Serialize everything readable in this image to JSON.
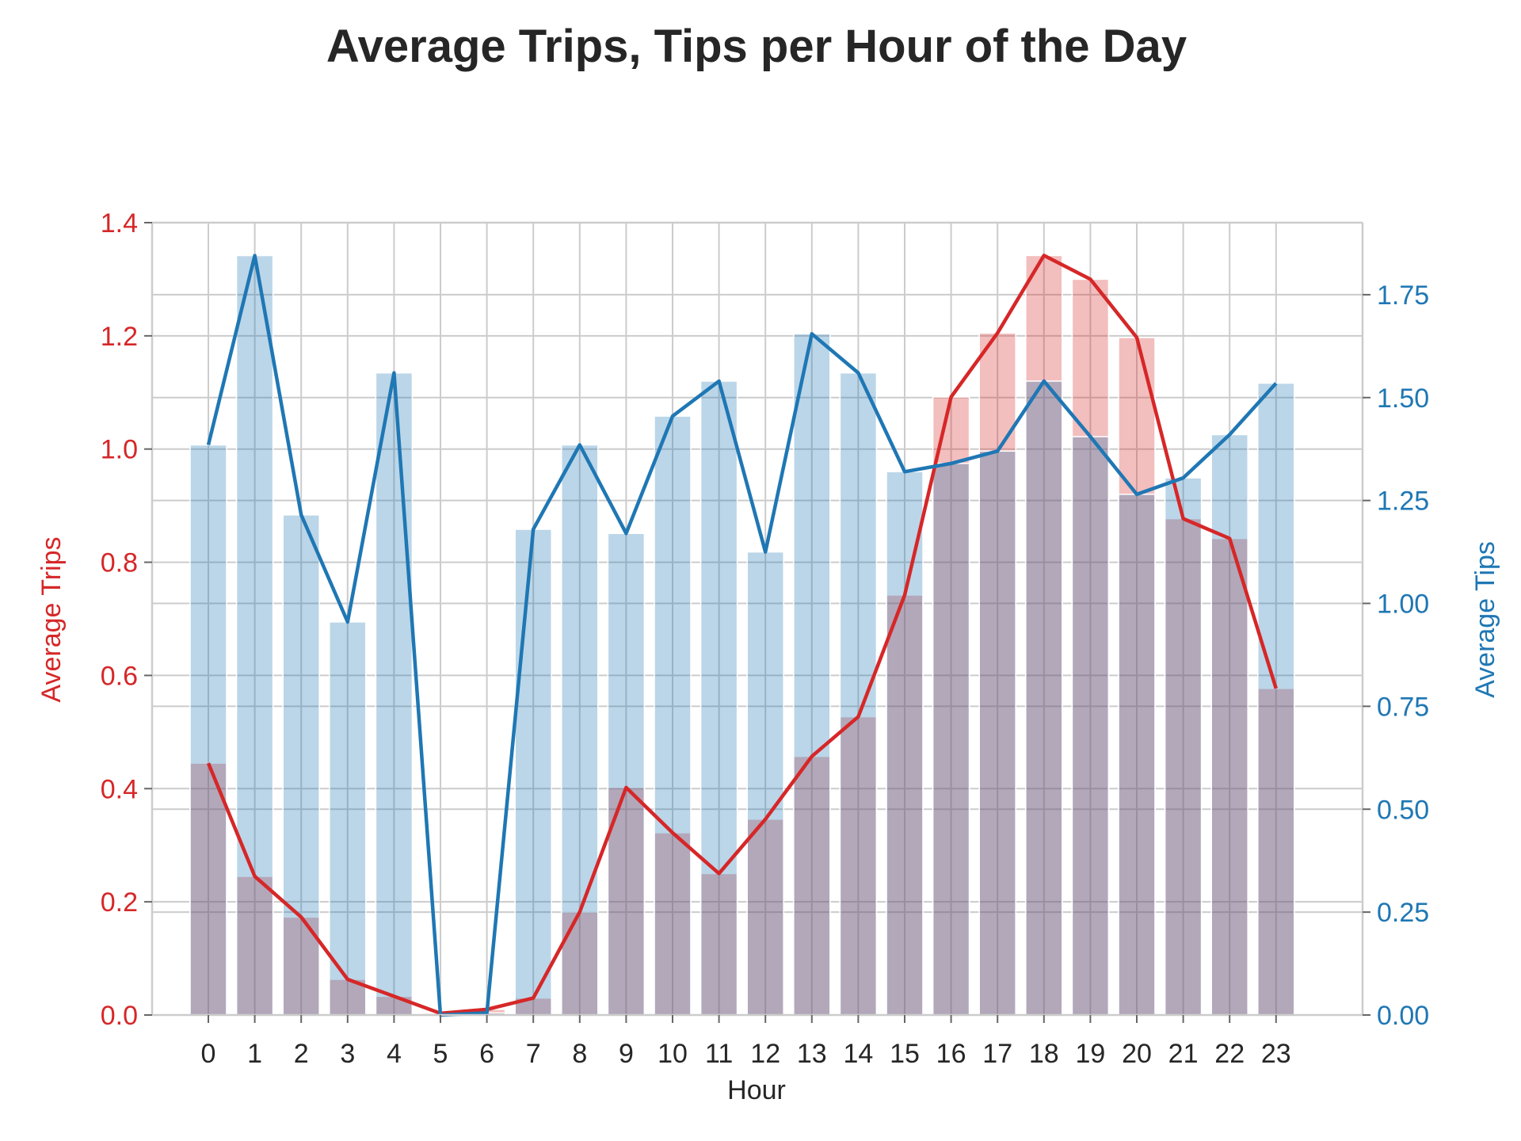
{
  "chart_data": {
    "type": "bar",
    "title": "Average Trips, Tips per Hour of the Day",
    "xlabel": "Hour",
    "categories": [
      "0",
      "1",
      "2",
      "3",
      "4",
      "5",
      "6",
      "7",
      "8",
      "9",
      "10",
      "11",
      "12",
      "13",
      "14",
      "15",
      "16",
      "17",
      "18",
      "19",
      "20",
      "21",
      "22",
      "23"
    ],
    "left_axis": {
      "label": "Average Trips",
      "color": "#d62728",
      "ylim": [
        0,
        1.4
      ],
      "ticks": [
        "0.0",
        "0.2",
        "0.4",
        "0.6",
        "0.8",
        "1.0",
        "1.2",
        "1.4"
      ]
    },
    "right_axis": {
      "label": "Average Tips",
      "color": "#1f77b4",
      "ylim": [
        0,
        1.925
      ],
      "ticks": [
        "0.00",
        "0.25",
        "0.50",
        "0.75",
        "1.00",
        "1.25",
        "1.50",
        "1.75"
      ]
    },
    "series": [
      {
        "axis": "left",
        "color": "#d62728",
        "render": "bar+line",
        "values": [
          0.445,
          0.245,
          0.173,
          0.063,
          0.033,
          0.003,
          0.01,
          0.03,
          0.182,
          0.402,
          0.322,
          0.25,
          0.346,
          0.457,
          0.527,
          0.742,
          1.092,
          1.205,
          1.342,
          1.3,
          1.197,
          0.877,
          0.842,
          0.577
        ]
      },
      {
        "axis": "right",
        "color": "#1f77b4",
        "render": "bar+line",
        "values": [
          1.385,
          1.845,
          1.215,
          0.955,
          1.56,
          0.0,
          0.005,
          1.18,
          1.385,
          1.17,
          1.455,
          1.54,
          1.125,
          1.655,
          1.56,
          1.32,
          1.34,
          1.37,
          1.54,
          1.405,
          1.265,
          1.305,
          1.41,
          1.535
        ]
      }
    ],
    "grid": true,
    "legend": "none"
  }
}
